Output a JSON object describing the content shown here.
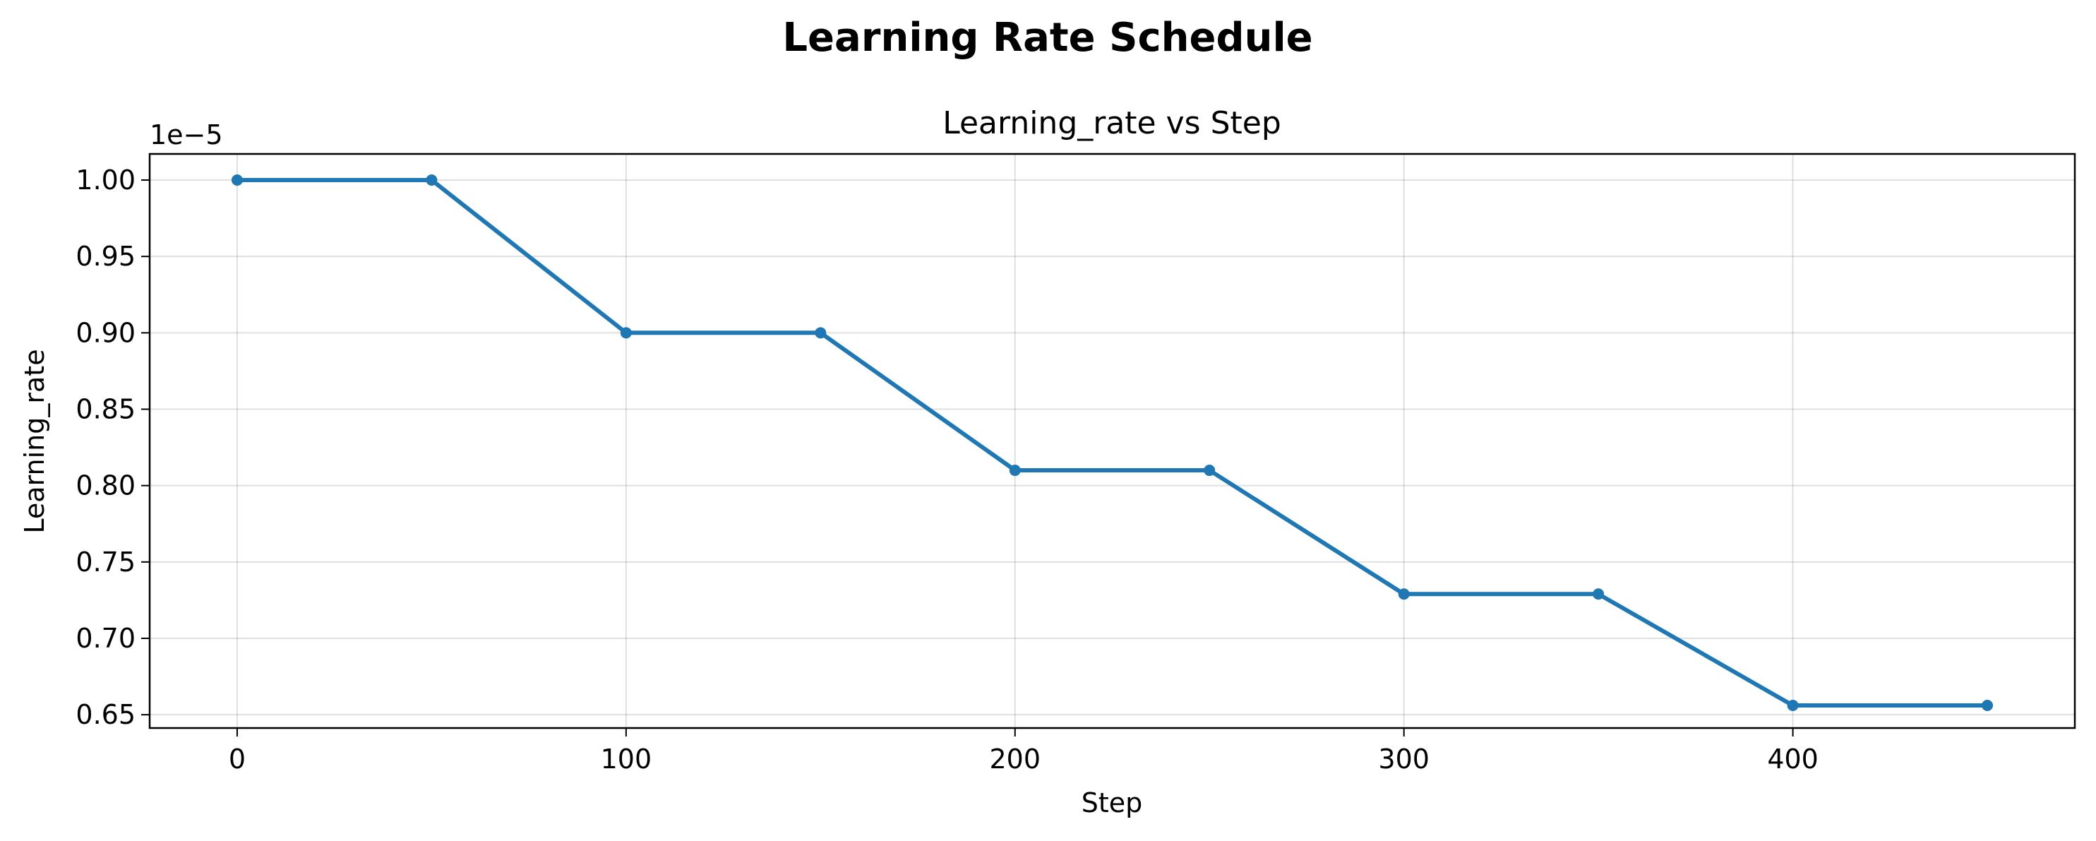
{
  "chart_data": {
    "type": "line",
    "suptitle": "Learning Rate Schedule",
    "title": "Learning_rate vs Step",
    "xlabel": "Step",
    "ylabel": "Learning_rate",
    "y_offset_label": "1e−5",
    "x_ticks": [
      "0",
      "100",
      "200",
      "300",
      "400"
    ],
    "y_ticks": [
      "0.65",
      "0.70",
      "0.75",
      "0.80",
      "0.85",
      "0.90",
      "0.95",
      "1.00"
    ],
    "xlim": [
      -22.5,
      472.5
    ],
    "ylim": [
      0.6413,
      1.0171
    ],
    "y_scale_note": "values shown ×1e-5",
    "grid": true,
    "series": [
      {
        "color": "#1f77b4",
        "x": [
          0,
          50,
          100,
          150,
          200,
          250,
          300,
          350,
          400,
          450
        ],
        "y": [
          1.0,
          1.0,
          0.9,
          0.9,
          0.81,
          0.81,
          0.729,
          0.729,
          0.6561,
          0.6561
        ]
      }
    ]
  }
}
